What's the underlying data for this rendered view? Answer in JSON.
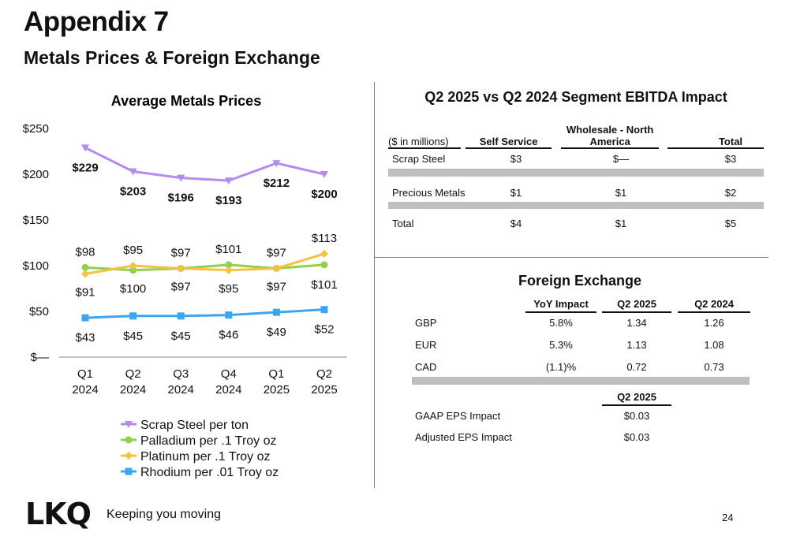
{
  "page": {
    "title": "Appendix 7",
    "subtitle": "Metals Prices & Foreign Exchange",
    "page_number": "24",
    "logo_text": "LKQ",
    "tagline": "Keeping you moving"
  },
  "chart_data": {
    "type": "line",
    "title": "Average Metals Prices",
    "categories": [
      "Q1 2024",
      "Q2 2024",
      "Q3 2024",
      "Q4 2024",
      "Q1 2025",
      "Q2 2025"
    ],
    "ylim": [
      0,
      250
    ],
    "yticks": [
      "$—",
      "$50",
      "$100",
      "$150",
      "$200",
      "$250"
    ],
    "legend_position": "bottom",
    "series": [
      {
        "name": "Scrap Steel per ton",
        "values": [
          229,
          203,
          196,
          193,
          212,
          200
        ],
        "labels": [
          "$229",
          "$203",
          "$196",
          "$193",
          "$212",
          "$200"
        ],
        "color": "#b48cf0",
        "marker": "triangle-down",
        "bold_labels": true
      },
      {
        "name": "Palladium per .1 Troy oz",
        "values": [
          98,
          95,
          97,
          101,
          97,
          101
        ],
        "labels": [
          "$98",
          "$95",
          "$97",
          "$101",
          "$97",
          "$101"
        ],
        "color": "#8fd14f",
        "marker": "circle"
      },
      {
        "name": "Platinum per .1 Troy oz",
        "values": [
          91,
          100,
          97,
          95,
          97,
          113
        ],
        "labels": [
          "$91",
          "$100",
          "$97",
          "$95",
          "$97",
          "$113"
        ],
        "color": "#f5c142",
        "marker": "diamond"
      },
      {
        "name": "Rhodium per .01 Troy oz",
        "values": [
          43,
          45,
          45,
          46,
          49,
          52
        ],
        "labels": [
          "$43",
          "$45",
          "$45",
          "$46",
          "$49",
          "$52"
        ],
        "color": "#3fa4f0",
        "marker": "square"
      }
    ]
  },
  "ebitda": {
    "title": "Q2 2025 vs Q2 2024  Segment EBITDA Impact",
    "unit_label": "($ in millions)",
    "headers": [
      "Self Service",
      "Wholesale - North America",
      "Total"
    ],
    "rows": [
      {
        "label": "Scrap Steel",
        "values": [
          "$3",
          "$—",
          "$3"
        ]
      },
      {
        "label": "Precious Metals",
        "values": [
          "$1",
          "$1",
          "$2"
        ]
      },
      {
        "label": "Total",
        "values": [
          "$4",
          "$1",
          "$5"
        ]
      }
    ]
  },
  "fx": {
    "title": "Foreign Exchange",
    "headers": [
      "YoY Impact",
      "Q2 2025",
      "Q2 2024"
    ],
    "rows": [
      {
        "label": "GBP",
        "values": [
          "5.8%",
          "1.34",
          "1.26"
        ]
      },
      {
        "label": "EUR",
        "values": [
          "5.3%",
          "1.13",
          "1.08"
        ]
      },
      {
        "label": "CAD",
        "values": [
          "(1.1)%",
          "0.72",
          "0.73"
        ]
      }
    ],
    "eps_header": "Q2 2025",
    "eps_rows": [
      {
        "label": "GAAP EPS Impact",
        "value": "$0.03"
      },
      {
        "label": "Adjusted EPS Impact",
        "value": "$0.03"
      }
    ]
  }
}
